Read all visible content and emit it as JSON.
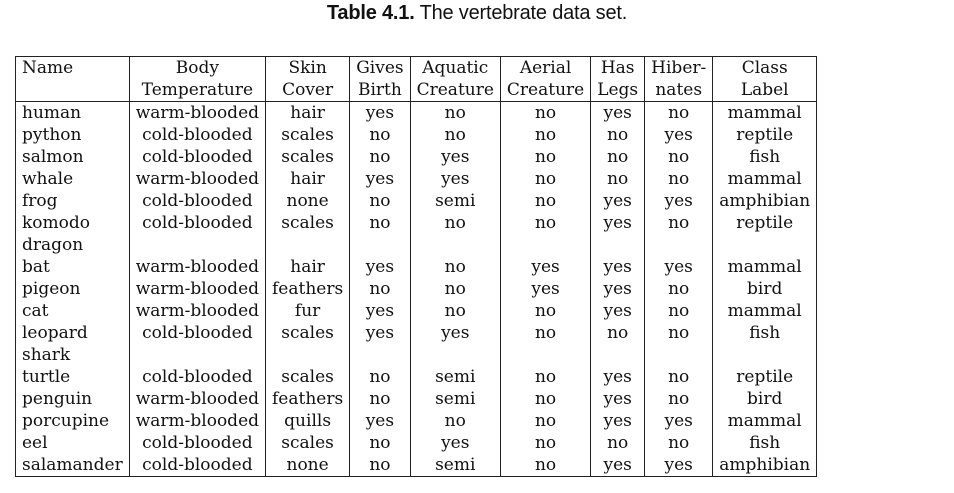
{
  "caption": {
    "number": "Table 4.1.",
    "text": "The vertebrate data set."
  },
  "columns": [
    [
      "Name"
    ],
    [
      "Body",
      "Temperature"
    ],
    [
      "Skin",
      "Cover"
    ],
    [
      "Gives",
      "Birth"
    ],
    [
      "Aquatic",
      "Creature"
    ],
    [
      "Aerial",
      "Creature"
    ],
    [
      "Has",
      "Legs"
    ],
    [
      "Hiber-",
      "nates"
    ],
    [
      "Class",
      "Label"
    ]
  ],
  "rows": [
    {
      "name": [
        "human"
      ],
      "cells": [
        "warm-blooded",
        "hair",
        "yes",
        "no",
        "no",
        "yes",
        "no",
        "mammal"
      ]
    },
    {
      "name": [
        "python"
      ],
      "cells": [
        "cold-blooded",
        "scales",
        "no",
        "no",
        "no",
        "no",
        "yes",
        "reptile"
      ]
    },
    {
      "name": [
        "salmon"
      ],
      "cells": [
        "cold-blooded",
        "scales",
        "no",
        "yes",
        "no",
        "no",
        "no",
        "fish"
      ]
    },
    {
      "name": [
        "whale"
      ],
      "cells": [
        "warm-blooded",
        "hair",
        "yes",
        "yes",
        "no",
        "no",
        "no",
        "mammal"
      ]
    },
    {
      "name": [
        "frog"
      ],
      "cells": [
        "cold-blooded",
        "none",
        "no",
        "semi",
        "no",
        "yes",
        "yes",
        "amphibian"
      ]
    },
    {
      "name": [
        "komodo",
        "dragon"
      ],
      "cells": [
        "cold-blooded",
        "scales",
        "no",
        "no",
        "no",
        "yes",
        "no",
        "reptile"
      ]
    },
    {
      "name": [
        "bat"
      ],
      "cells": [
        "warm-blooded",
        "hair",
        "yes",
        "no",
        "yes",
        "yes",
        "yes",
        "mammal"
      ]
    },
    {
      "name": [
        "pigeon"
      ],
      "cells": [
        "warm-blooded",
        "feathers",
        "no",
        "no",
        "yes",
        "yes",
        "no",
        "bird"
      ]
    },
    {
      "name": [
        "cat"
      ],
      "cells": [
        "warm-blooded",
        "fur",
        "yes",
        "no",
        "no",
        "yes",
        "no",
        "mammal"
      ]
    },
    {
      "name": [
        "leopard",
        "shark"
      ],
      "cells": [
        "cold-blooded",
        "scales",
        "yes",
        "yes",
        "no",
        "no",
        "no",
        "fish"
      ]
    },
    {
      "name": [
        "turtle"
      ],
      "cells": [
        "cold-blooded",
        "scales",
        "no",
        "semi",
        "no",
        "yes",
        "no",
        "reptile"
      ]
    },
    {
      "name": [
        "penguin"
      ],
      "cells": [
        "warm-blooded",
        "feathers",
        "no",
        "semi",
        "no",
        "yes",
        "no",
        "bird"
      ]
    },
    {
      "name": [
        "porcupine"
      ],
      "cells": [
        "warm-blooded",
        "quills",
        "yes",
        "no",
        "no",
        "yes",
        "yes",
        "mammal"
      ]
    },
    {
      "name": [
        "eel"
      ],
      "cells": [
        "cold-blooded",
        "scales",
        "no",
        "yes",
        "no",
        "no",
        "no",
        "fish"
      ]
    },
    {
      "name": [
        "salamander"
      ],
      "cells": [
        "cold-blooded",
        "none",
        "no",
        "semi",
        "no",
        "yes",
        "yes",
        "amphibian"
      ]
    }
  ]
}
